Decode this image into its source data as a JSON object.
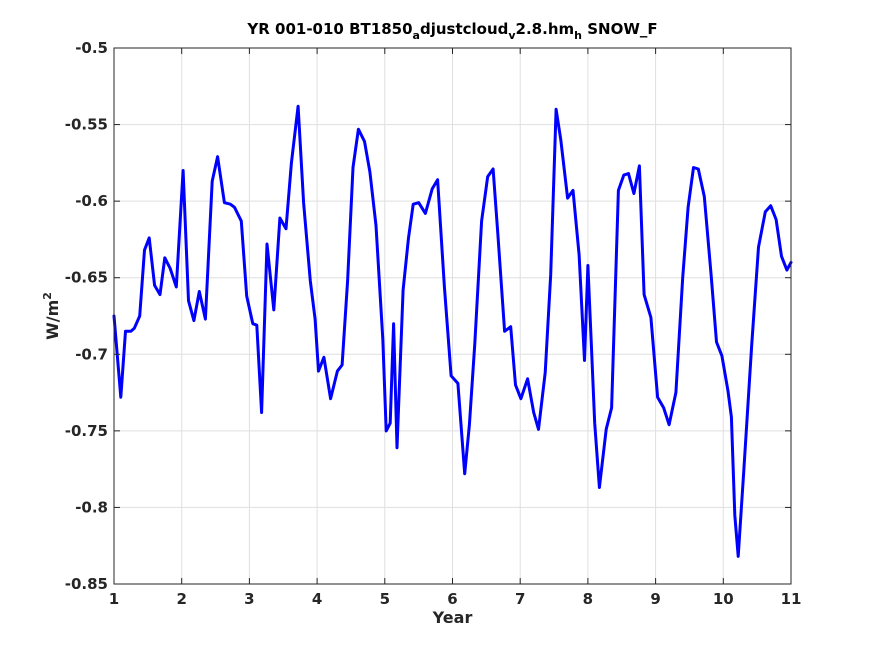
{
  "chart_data": {
    "type": "line",
    "title": {
      "main": "YR 001-010 BT1850",
      "sub1": "a",
      "mid1": "djustcloud",
      "sub2": "v",
      "mid2": "2.8.hm",
      "sub3": "h",
      "end": " SNOW_F"
    },
    "xlabel": "Year",
    "ylabel": {
      "base": "W/m",
      "sup": "2"
    },
    "xlim": [
      1,
      11
    ],
    "ylim": [
      -0.85,
      -0.5
    ],
    "xticks": [
      1,
      2,
      3,
      4,
      5,
      6,
      7,
      8,
      9,
      10,
      11
    ],
    "xtick_labels": [
      "1",
      "2",
      "3",
      "4",
      "5",
      "6",
      "7",
      "8",
      "9",
      "10",
      "11"
    ],
    "yticks": [
      -0.5,
      -0.55,
      -0.6,
      -0.65,
      -0.7,
      -0.75,
      -0.8,
      -0.85
    ],
    "ytick_labels": [
      "-0.5",
      "-0.55",
      "-0.6",
      "-0.65",
      "-0.7",
      "-0.75",
      "-0.8",
      "-0.85"
    ],
    "grid": true,
    "line_color": "#0000ff",
    "series": [
      {
        "x": [
          1.0,
          1.1,
          1.17,
          1.25,
          1.3,
          1.38,
          1.45,
          1.52,
          1.6,
          1.68,
          1.75,
          1.83,
          1.92,
          2.02,
          2.1,
          2.18,
          2.26,
          2.35,
          2.45,
          2.53,
          2.63,
          2.72,
          2.78,
          2.88,
          2.96,
          3.05,
          3.11,
          3.18,
          3.26,
          3.36,
          3.45,
          3.54,
          3.62,
          3.72,
          3.8,
          3.9,
          3.97,
          4.02,
          4.1,
          4.2,
          4.3,
          4.37,
          4.45,
          4.53,
          4.61,
          4.7,
          4.78,
          4.87,
          4.97,
          5.02,
          5.08,
          5.13,
          5.18,
          5.27,
          5.35,
          5.42,
          5.5,
          5.6,
          5.7,
          5.78,
          5.88,
          5.98,
          6.08,
          6.18,
          6.25,
          6.33,
          6.43,
          6.52,
          6.6,
          6.67,
          6.77,
          6.86,
          6.93,
          7.01,
          7.11,
          7.2,
          7.27,
          7.37,
          7.45,
          7.53,
          7.6,
          7.7,
          7.78,
          7.87,
          7.95,
          8.0,
          8.05,
          8.1,
          8.17,
          8.27,
          8.35,
          8.45,
          8.53,
          8.6,
          8.68,
          8.76,
          8.83,
          8.93,
          9.03,
          9.12,
          9.2,
          9.3,
          9.4,
          9.48,
          9.56,
          9.63,
          9.72,
          9.82,
          9.9,
          9.98,
          10.07,
          10.12,
          10.17,
          10.22,
          10.3,
          10.42,
          10.52,
          10.62,
          10.7,
          10.78,
          10.86,
          10.94,
          11.0
        ],
        "y": [
          -0.675,
          -0.728,
          -0.685,
          -0.685,
          -0.683,
          -0.675,
          -0.632,
          -0.624,
          -0.655,
          -0.661,
          -0.637,
          -0.644,
          -0.656,
          -0.58,
          -0.665,
          -0.678,
          -0.659,
          -0.677,
          -0.587,
          -0.571,
          -0.601,
          -0.602,
          -0.604,
          -0.613,
          -0.662,
          -0.68,
          -0.681,
          -0.738,
          -0.628,
          -0.671,
          -0.611,
          -0.618,
          -0.575,
          -0.538,
          -0.601,
          -0.652,
          -0.677,
          -0.711,
          -0.702,
          -0.729,
          -0.711,
          -0.707,
          -0.652,
          -0.578,
          -0.553,
          -0.561,
          -0.581,
          -0.616,
          -0.69,
          -0.75,
          -0.745,
          -0.68,
          -0.761,
          -0.658,
          -0.624,
          -0.602,
          -0.601,
          -0.608,
          -0.592,
          -0.586,
          -0.656,
          -0.714,
          -0.719,
          -0.778,
          -0.746,
          -0.693,
          -0.613,
          -0.584,
          -0.579,
          -0.622,
          -0.685,
          -0.682,
          -0.72,
          -0.729,
          -0.716,
          -0.738,
          -0.749,
          -0.712,
          -0.648,
          -0.54,
          -0.56,
          -0.598,
          -0.593,
          -0.635,
          -0.704,
          -0.642,
          -0.693,
          -0.745,
          -0.787,
          -0.749,
          -0.735,
          -0.593,
          -0.583,
          -0.582,
          -0.595,
          -0.577,
          -0.661,
          -0.676,
          -0.728,
          -0.735,
          -0.746,
          -0.725,
          -0.65,
          -0.604,
          -0.578,
          -0.579,
          -0.597,
          -0.648,
          -0.692,
          -0.701,
          -0.724,
          -0.741,
          -0.805,
          -0.832,
          -0.778,
          -0.694,
          -0.63,
          -0.607,
          -0.603,
          -0.612,
          -0.636,
          -0.645,
          -0.64
        ]
      }
    ]
  }
}
